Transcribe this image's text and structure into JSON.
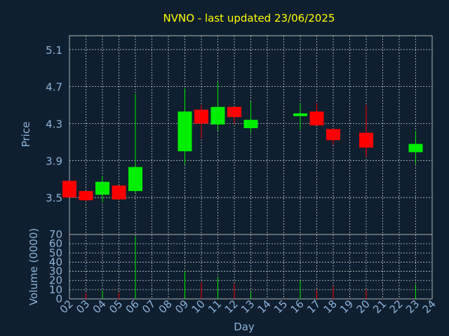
{
  "chart_data": {
    "type": "candlestick",
    "title": "NVNO - last updated 23/06/2025",
    "xlabel": "Day",
    "colors": {
      "background": "#0f1f2f",
      "plot_bg": "#0f1f2f",
      "axis": "#b0b0b0",
      "grid": "#c8c8c8",
      "text": "#8fb3d9",
      "title": "#ffff00",
      "up": "#00ee00",
      "down": "#ff0000"
    },
    "grid": true,
    "x_ticks": [
      "02",
      "03",
      "04",
      "05",
      "06",
      "07",
      "08",
      "09",
      "10",
      "11",
      "12",
      "13",
      "14",
      "15",
      "16",
      "17",
      "18",
      "19",
      "20",
      "21",
      "22",
      "23",
      "24"
    ],
    "price": {
      "ylabel": "Price",
      "ylim": [
        3.1,
        5.25
      ],
      "ticks": [
        "3.5",
        "3.9",
        "4.3",
        "4.7",
        "5.1"
      ],
      "candles": [
        {
          "day": "02",
          "open": 3.68,
          "high": 3.68,
          "low": 3.5,
          "close": 3.5
        },
        {
          "day": "03",
          "open": 3.57,
          "high": 3.57,
          "low": 3.46,
          "close": 3.47
        },
        {
          "day": "04",
          "open": 3.53,
          "high": 3.73,
          "low": 3.45,
          "close": 3.67
        },
        {
          "day": "05",
          "open": 3.63,
          "high": 3.63,
          "low": 3.47,
          "close": 3.48
        },
        {
          "day": "06",
          "open": 3.57,
          "high": 4.62,
          "low": 3.55,
          "close": 3.83
        },
        {
          "day": "09",
          "open": 4.0,
          "high": 4.68,
          "low": 3.86,
          "close": 4.43
        },
        {
          "day": "10",
          "open": 4.45,
          "high": 4.5,
          "low": 4.14,
          "close": 4.3
        },
        {
          "day": "11",
          "open": 4.29,
          "high": 4.75,
          "low": 4.22,
          "close": 4.48
        },
        {
          "day": "12",
          "open": 4.48,
          "high": 4.48,
          "low": 4.3,
          "close": 4.37
        },
        {
          "day": "13",
          "open": 4.25,
          "high": 4.54,
          "low": 4.2,
          "close": 4.34
        },
        {
          "day": "16",
          "open": 4.38,
          "high": 4.52,
          "low": 4.23,
          "close": 4.41
        },
        {
          "day": "17",
          "open": 4.43,
          "high": 4.52,
          "low": 4.28,
          "close": 4.28
        },
        {
          "day": "18",
          "open": 4.24,
          "high": 4.24,
          "low": 4.07,
          "close": 4.12
        },
        {
          "day": "20",
          "open": 4.2,
          "high": 4.5,
          "low": 3.94,
          "close": 4.04
        },
        {
          "day": "23",
          "open": 3.99,
          "high": 4.22,
          "low": 3.86,
          "close": 4.08
        }
      ]
    },
    "volume": {
      "ylabel": "Volume (0000)",
      "ylim": [
        0,
        70
      ],
      "ticks": [
        "0",
        "10",
        "20",
        "30",
        "40",
        "50",
        "60",
        "70"
      ],
      "bars": [
        {
          "day": "03",
          "value": 6,
          "dir": "down"
        },
        {
          "day": "04",
          "value": 9,
          "dir": "up"
        },
        {
          "day": "05",
          "value": 7,
          "dir": "down"
        },
        {
          "day": "06",
          "value": 68,
          "dir": "up"
        },
        {
          "day": "09",
          "value": 30,
          "dir": "up"
        },
        {
          "day": "10",
          "value": 18,
          "dir": "down"
        },
        {
          "day": "11",
          "value": 24,
          "dir": "up"
        },
        {
          "day": "12",
          "value": 16,
          "dir": "down"
        },
        {
          "day": "13",
          "value": 8,
          "dir": "up"
        },
        {
          "day": "16",
          "value": 20,
          "dir": "up"
        },
        {
          "day": "17",
          "value": 10,
          "dir": "down"
        },
        {
          "day": "18",
          "value": 14,
          "dir": "down"
        },
        {
          "day": "20",
          "value": 10,
          "dir": "down"
        },
        {
          "day": "23",
          "value": 16,
          "dir": "up"
        }
      ]
    }
  }
}
